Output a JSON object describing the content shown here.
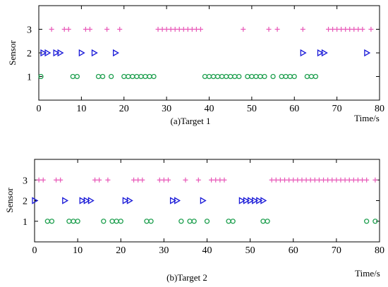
{
  "chart_data": [
    {
      "type": "scatter",
      "caption": "(a)Target 1",
      "xlabel": "Time/s",
      "ylabel": "Sensor",
      "xlim": [
        0,
        80
      ],
      "ylim": [
        0,
        4
      ],
      "xticks": [
        0,
        10,
        20,
        30,
        40,
        50,
        60,
        70,
        80
      ],
      "yticks": [
        1,
        2,
        3
      ],
      "grid": false,
      "series": [
        {
          "sensor": 3,
          "marker": "plus",
          "color": "#e858b8",
          "x": [
            3,
            6,
            7,
            11,
            12,
            16,
            19,
            28,
            29,
            30,
            31,
            32,
            33,
            34,
            35,
            36,
            37,
            38,
            48,
            54,
            56,
            62,
            68,
            69,
            70,
            71,
            72,
            73,
            74,
            75,
            76,
            78
          ]
        },
        {
          "sensor": 2,
          "marker": "triangle-right",
          "color": "#1a1ad8",
          "x": [
            1,
            2,
            4,
            5,
            10,
            13,
            18,
            62,
            66,
            67,
            77
          ]
        },
        {
          "sensor": 1,
          "marker": "circle",
          "color": "#20a050",
          "x": [
            0.5,
            8,
            9,
            14,
            15,
            17,
            20,
            21,
            22,
            23,
            24,
            25,
            26,
            27,
            39,
            40,
            41,
            42,
            43,
            44,
            45,
            46,
            47,
            49,
            50,
            51,
            52,
            53,
            55,
            57,
            58,
            59,
            60,
            63,
            64,
            65
          ]
        }
      ]
    },
    {
      "type": "scatter",
      "caption": "(b)Target 2",
      "xlabel": "Time/s",
      "ylabel": "Sensor",
      "xlim": [
        0,
        80
      ],
      "ylim": [
        0,
        4
      ],
      "xticks": [
        0,
        10,
        20,
        30,
        40,
        50,
        60,
        70,
        80
      ],
      "yticks": [
        1,
        2,
        3
      ],
      "grid": false,
      "series": [
        {
          "sensor": 3,
          "marker": "plus",
          "color": "#e858b8",
          "x": [
            1,
            2,
            5,
            6,
            14,
            15,
            17,
            23,
            24,
            25,
            29,
            30,
            31,
            35,
            38,
            41,
            42,
            43,
            44,
            55,
            56,
            57,
            58,
            59,
            60,
            61,
            62,
            63,
            64,
            65,
            66,
            67,
            68,
            69,
            70,
            71,
            72,
            73,
            74,
            75,
            76,
            77,
            79
          ]
        },
        {
          "sensor": 2,
          "marker": "triangle-right",
          "color": "#1a1ad8",
          "x": [
            0,
            7,
            11,
            12,
            13,
            21,
            22,
            32,
            33,
            39,
            48,
            49,
            50,
            51,
            52,
            53
          ]
        },
        {
          "sensor": 1,
          "marker": "circle",
          "color": "#20a050",
          "x": [
            3,
            4,
            8,
            9,
            10,
            16,
            18,
            19,
            20,
            26,
            27,
            34,
            36,
            37,
            40,
            45,
            46,
            53,
            54,
            77,
            79
          ]
        }
      ]
    }
  ]
}
